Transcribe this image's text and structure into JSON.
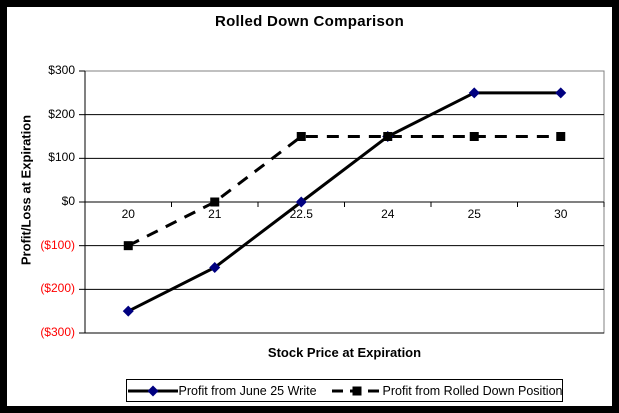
{
  "window": {
    "background": "#ffffff",
    "frame_color": "#000000"
  },
  "chart_data": {
    "type": "line",
    "title": "Rolled Down Comparison",
    "xlabel": "Stock Price at Expiration",
    "ylabel": "Profit/Loss at Expiration",
    "categories": [
      "20",
      "21",
      "22.5",
      "24",
      "25",
      "30"
    ],
    "series": [
      {
        "name": "Profit from June 25 Write",
        "values": [
          -250,
          -150,
          0,
          150,
          250,
          250
        ],
        "line_style": "solid",
        "line_color": "#000000",
        "marker": "diamond",
        "marker_color": "#000080"
      },
      {
        "name": "Profit from Rolled Down Position",
        "values": [
          -100,
          0,
          150,
          150,
          150,
          150
        ],
        "line_style": "dashed",
        "line_color": "#000000",
        "marker": "square",
        "marker_color": "#000000"
      }
    ],
    "ylim": [
      -300,
      300
    ],
    "y_ticks": [
      {
        "value": 300,
        "label": "$300"
      },
      {
        "value": 200,
        "label": "$200"
      },
      {
        "value": 100,
        "label": "$100"
      },
      {
        "value": 0,
        "label": "$0"
      },
      {
        "value": -100,
        "label": "($100)"
      },
      {
        "value": -200,
        "label": "($200)"
      },
      {
        "value": -300,
        "label": "($300)"
      }
    ],
    "positive_tick_color": "#000000",
    "negative_tick_color": "#FF0000",
    "gridline_color": "#000000",
    "plot_border_color": "#808080",
    "axis_color": "#000000",
    "grid": "horizontal",
    "legend_position": "bottom"
  }
}
